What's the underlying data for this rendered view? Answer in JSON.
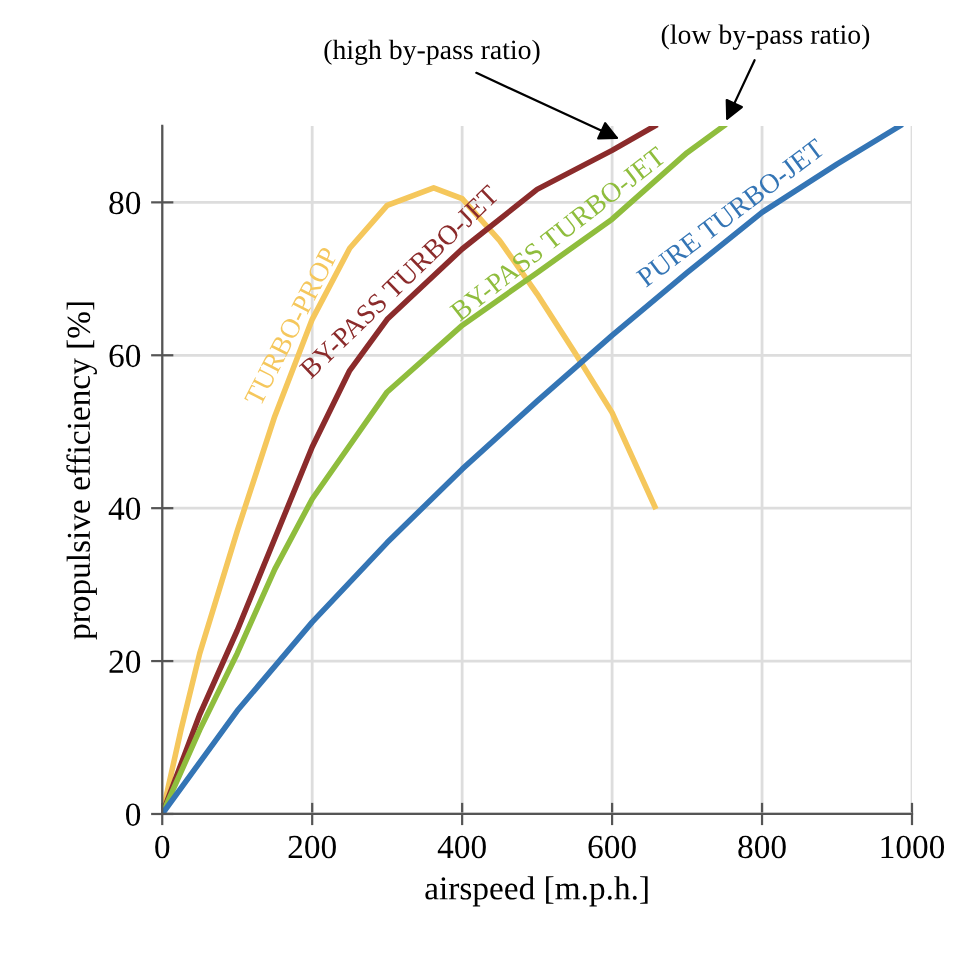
{
  "chart_data": {
    "type": "line",
    "xlabel": "airspeed [m.p.h.]",
    "ylabel": "propulsive efficiency [%]",
    "xlim": [
      0,
      1000
    ],
    "ylim": [
      0,
      90
    ],
    "xticks": [
      0,
      200,
      400,
      600,
      800,
      1000
    ],
    "yticks": [
      0,
      20,
      40,
      60,
      80
    ],
    "grid": true,
    "legend": false,
    "marker": "none",
    "line_style": "solid",
    "series": [
      {
        "name": "TURBO-PROP",
        "color": "#f5c75c",
        "x": [
          0,
          25,
          50,
          100,
          150,
          200,
          250,
          300,
          362,
          400,
          450,
          500,
          550,
          600,
          657
        ],
        "values": [
          0,
          11,
          21,
          37,
          52,
          64.7,
          74,
          79.6,
          81.9,
          80.5,
          75,
          68,
          60.4,
          52.5,
          40.2
        ]
      },
      {
        "name": "BY-PASS TURBO-JET",
        "color": "#8b2b2b",
        "x": [
          0,
          50,
          100,
          150,
          200,
          250,
          300,
          400,
          500,
          600,
          657
        ],
        "values": [
          0,
          13,
          24,
          36,
          48,
          58,
          64.7,
          73.9,
          81.7,
          86.8,
          90
        ]
      },
      {
        "name": "BY-PASS TURBO-JET",
        "color": "#8fbd3d",
        "x": [
          0,
          50,
          100,
          150,
          200,
          300,
          400,
          500,
          600,
          700,
          749
        ],
        "values": [
          0,
          11,
          21,
          32,
          41.2,
          55.2,
          63.9,
          70.8,
          77.8,
          86.5,
          90
        ]
      },
      {
        "name": "PURE TURBO-JET",
        "color": "#3475b5",
        "x": [
          0,
          100,
          200,
          300,
          400,
          500,
          600,
          700,
          800,
          900,
          984
        ],
        "values": [
          0,
          13.5,
          25.1,
          35.5,
          45.1,
          54,
          62.6,
          70.8,
          78.7,
          85,
          90
        ]
      }
    ],
    "annotations": [
      {
        "text": "(high by-pass ratio)",
        "x": 616,
        "y": 88
      },
      {
        "text": "(low by-pass ratio)",
        "x": 749,
        "y": 90
      }
    ]
  }
}
